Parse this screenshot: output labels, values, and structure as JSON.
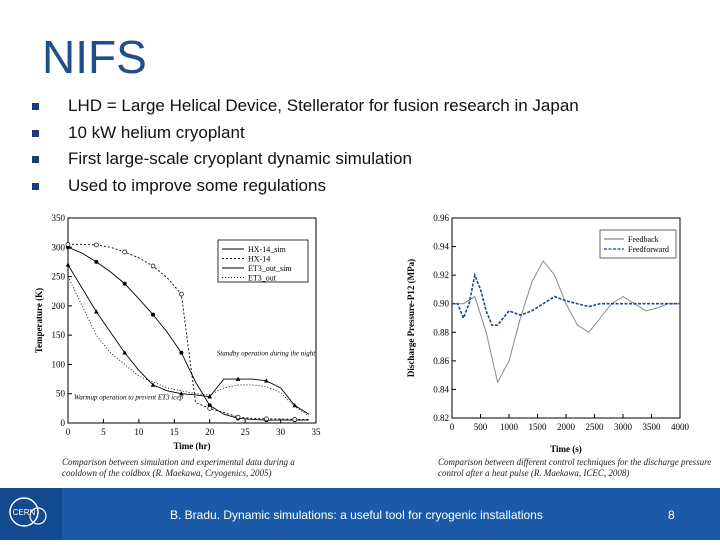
{
  "slide": {
    "title": "NIFS",
    "bullets": [
      "LHD = Large Helical Device, Stellerator for fusion research in Japan",
      "10 kW helium cryoplant",
      "First large-scale cryoplant dynamic simulation",
      "Used to improve some regulations"
    ],
    "caption_left": "Comparison between simulation and experimental data during a cooldown of the coldbox (R. Maekawa, Cryogenics, 2005)",
    "caption_right": "Comparison between different control techniques for the discharge pressure control after a heat pulse (R. Maekawa, ICEC, 2008)",
    "footer_text": "B. Bradu. Dynamic simulations: a useful tool for cryogenic installations",
    "page_number": "8",
    "logo_text": "CERN",
    "footer_color": "#1a5aa8",
    "title_color": "#1f4e8c"
  },
  "chart_data": [
    {
      "type": "line",
      "xlabel": "Time (hr)",
      "ylabel": "Temperature (K)",
      "xlim": [
        0,
        35
      ],
      "ylim": [
        0,
        350
      ],
      "xticks": [
        0,
        5,
        10,
        15,
        20,
        25,
        30,
        35
      ],
      "yticks": [
        0,
        50,
        100,
        150,
        200,
        250,
        300,
        350
      ],
      "legend_position": "top-right",
      "series": [
        {
          "name": "HX-14_sim",
          "x": [
            0,
            2,
            4,
            6,
            8,
            10,
            12,
            14,
            16,
            18,
            20,
            22,
            24,
            26,
            28,
            30,
            32,
            34
          ],
          "y": [
            300,
            290,
            275,
            258,
            238,
            212,
            185,
            155,
            120,
            70,
            30,
            15,
            8,
            6,
            5,
            5,
            5,
            5
          ]
        },
        {
          "name": "HX-14",
          "x": [
            0,
            2,
            4,
            6,
            8,
            10,
            12,
            14,
            16,
            18,
            20,
            22,
            24,
            26,
            28,
            30,
            32,
            34
          ],
          "y": [
            305,
            305,
            304,
            300,
            292,
            282,
            268,
            248,
            220,
            35,
            25,
            18,
            10,
            8,
            7,
            7,
            6,
            6
          ]
        },
        {
          "name": "ET3_out_sim",
          "x": [
            0,
            2,
            4,
            6,
            8,
            10,
            12,
            14,
            16,
            18,
            20,
            22,
            24,
            26,
            28,
            30,
            32,
            34
          ],
          "y": [
            270,
            230,
            190,
            155,
            120,
            90,
            65,
            55,
            50,
            48,
            45,
            75,
            75,
            75,
            72,
            60,
            30,
            15
          ]
        },
        {
          "name": "ET3_out",
          "x": [
            0,
            2,
            4,
            6,
            8,
            10,
            12,
            14,
            16,
            18,
            20,
            22,
            24,
            26,
            28,
            30,
            32,
            34
          ],
          "y": [
            250,
            200,
            150,
            120,
            100,
            80,
            70,
            60,
            55,
            50,
            48,
            60,
            65,
            65,
            62,
            52,
            28,
            12
          ]
        }
      ],
      "annotations": [
        "Standby operation during the night",
        "Warmup operation to prevent ET3 icep"
      ]
    },
    {
      "type": "line",
      "xlabel": "Time (s)",
      "ylabel": "Discharge Pressure-P12 (MPa)",
      "xlim": [
        0,
        4000
      ],
      "ylim": [
        0.82,
        0.96
      ],
      "xticks": [
        0,
        500,
        1000,
        1500,
        2000,
        2500,
        3000,
        3500,
        4000
      ],
      "yticks": [
        0.82,
        0.84,
        0.86,
        0.88,
        0.9,
        0.92,
        0.94,
        0.96
      ],
      "legend_position": "top-right",
      "series": [
        {
          "name": "Feedback",
          "x": [
            0,
            200,
            400,
            600,
            800,
            1000,
            1200,
            1400,
            1600,
            1800,
            2000,
            2200,
            2400,
            2600,
            2800,
            3000,
            3200,
            3400,
            3600,
            3800,
            4000
          ],
          "y": [
            0.9,
            0.9,
            0.905,
            0.88,
            0.845,
            0.86,
            0.89,
            0.915,
            0.93,
            0.92,
            0.9,
            0.885,
            0.88,
            0.89,
            0.9,
            0.905,
            0.9,
            0.895,
            0.897,
            0.9,
            0.9
          ]
        },
        {
          "name": "Feedforward",
          "x": [
            0,
            100,
            200,
            300,
            400,
            500,
            600,
            700,
            800,
            900,
            1000,
            1200,
            1400,
            1600,
            1800,
            2000,
            2200,
            2400,
            2600,
            2800,
            3000,
            3200,
            3400,
            3600,
            3800,
            4000
          ],
          "y": [
            0.9,
            0.9,
            0.89,
            0.9,
            0.92,
            0.91,
            0.895,
            0.885,
            0.885,
            0.89,
            0.895,
            0.892,
            0.895,
            0.9,
            0.905,
            0.902,
            0.9,
            0.898,
            0.9,
            0.9,
            0.9,
            0.9,
            0.9,
            0.9,
            0.9,
            0.9
          ]
        }
      ]
    }
  ]
}
